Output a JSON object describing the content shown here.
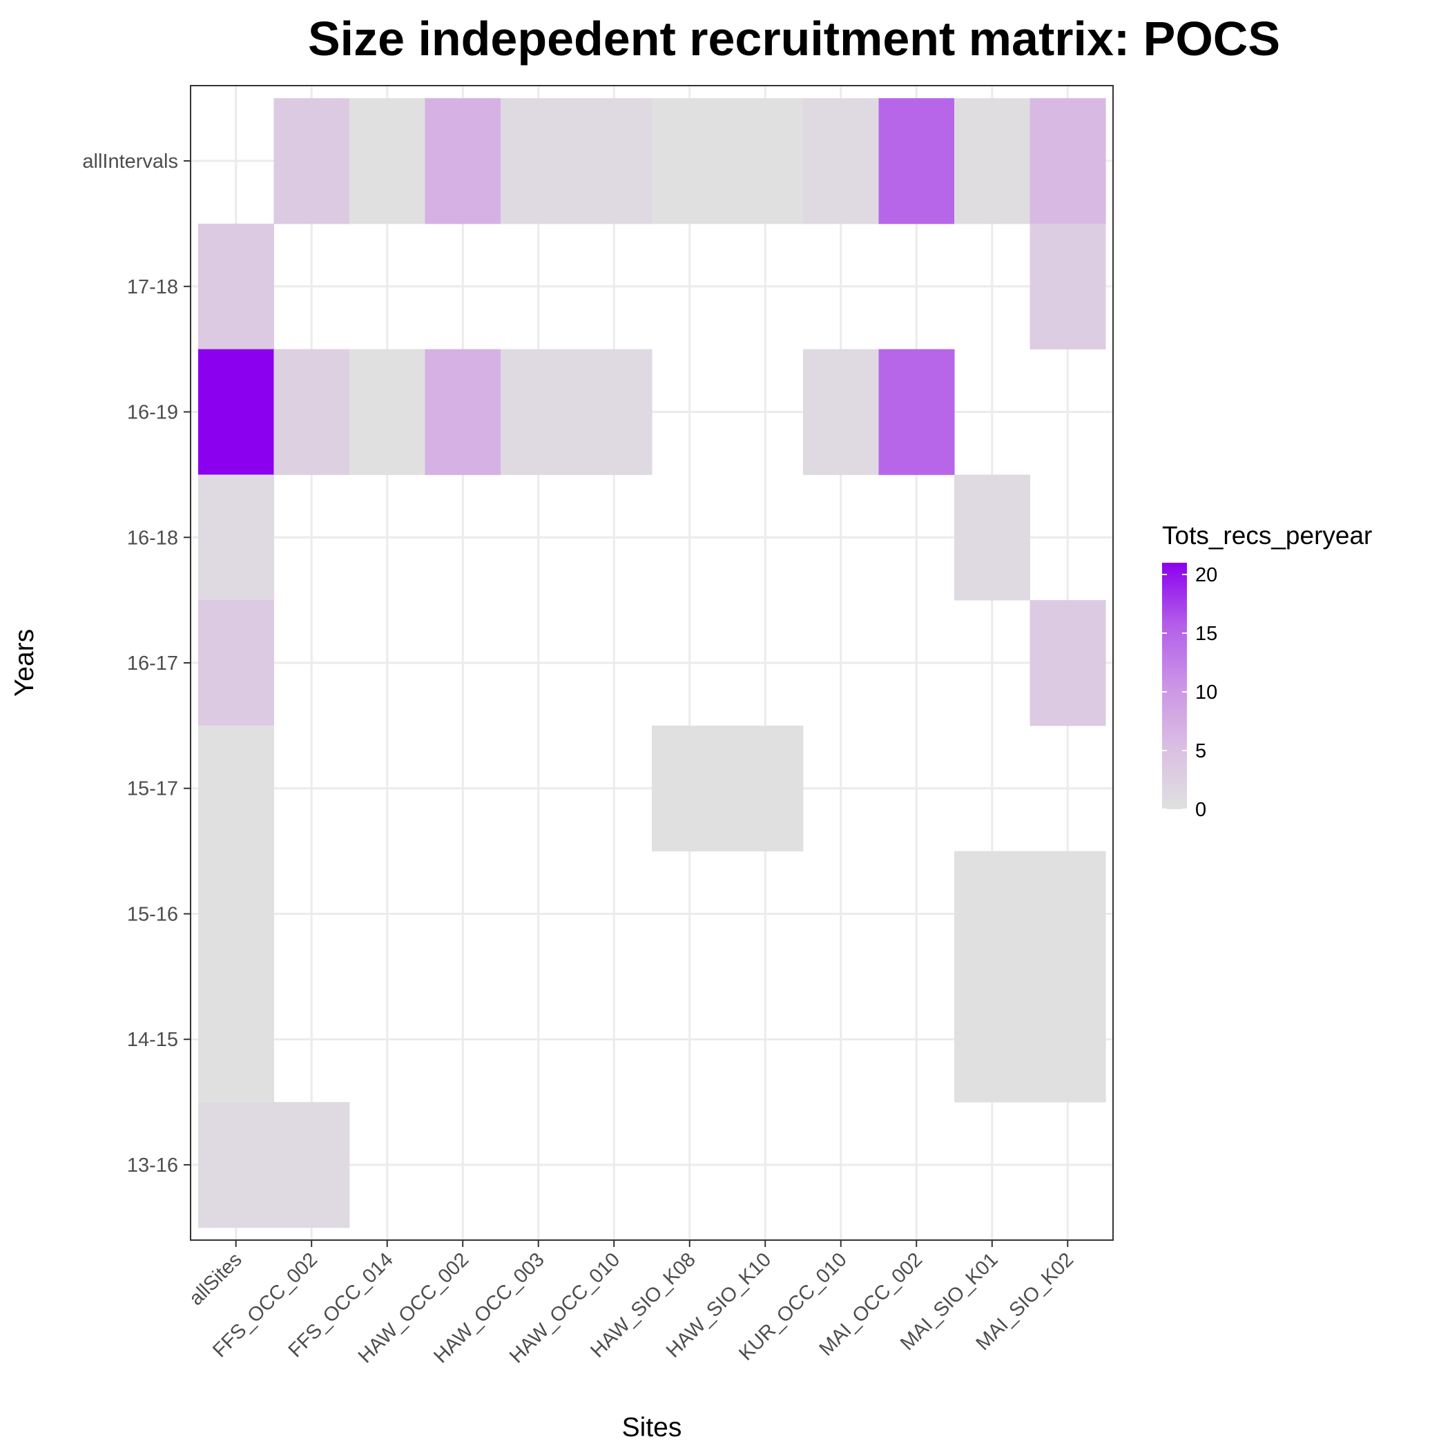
{
  "chart_data": {
    "type": "heatmap",
    "title": "Size indepedent recruitment matrix: POCS",
    "xlabel": "Sites",
    "ylabel": "Years",
    "x_categories": [
      "allSites",
      "FFS_OCC_002",
      "FFS_OCC_014",
      "HAW_OCC_002",
      "HAW_OCC_003",
      "HAW_OCC_010",
      "HAW_SIO_K08",
      "HAW_SIO_K10",
      "KUR_OCC_010",
      "MAI_OCC_002",
      "MAI_SIO_K01",
      "MAI_SIO_K02"
    ],
    "y_categories": [
      "allIntervals",
      "17-18",
      "16-19",
      "16-18",
      "16-17",
      "15-17",
      "15-16",
      "14-15",
      "13-16"
    ],
    "cells": [
      {
        "x": "FFS_OCC_002",
        "y": "allIntervals",
        "value": 3.5
      },
      {
        "x": "FFS_OCC_014",
        "y": "allIntervals",
        "value": 0
      },
      {
        "x": "HAW_OCC_002",
        "y": "allIntervals",
        "value": 7
      },
      {
        "x": "HAW_OCC_003",
        "y": "allIntervals",
        "value": 1
      },
      {
        "x": "HAW_OCC_010",
        "y": "allIntervals",
        "value": 1
      },
      {
        "x": "HAW_SIO_K08",
        "y": "allIntervals",
        "value": 0
      },
      {
        "x": "HAW_SIO_K10",
        "y": "allIntervals",
        "value": 0
      },
      {
        "x": "KUR_OCC_010",
        "y": "allIntervals",
        "value": 1
      },
      {
        "x": "MAI_OCC_002",
        "y": "allIntervals",
        "value": 15
      },
      {
        "x": "MAI_SIO_K01",
        "y": "allIntervals",
        "value": 0.5
      },
      {
        "x": "MAI_SIO_K02",
        "y": "allIntervals",
        "value": 6
      },
      {
        "x": "allSites",
        "y": "17-18",
        "value": 3.5
      },
      {
        "x": "MAI_SIO_K02",
        "y": "17-18",
        "value": 3
      },
      {
        "x": "allSites",
        "y": "16-19",
        "value": 21
      },
      {
        "x": "FFS_OCC_002",
        "y": "16-19",
        "value": 2.5
      },
      {
        "x": "FFS_OCC_014",
        "y": "16-19",
        "value": 0
      },
      {
        "x": "HAW_OCC_002",
        "y": "16-19",
        "value": 7
      },
      {
        "x": "HAW_OCC_003",
        "y": "16-19",
        "value": 1
      },
      {
        "x": "HAW_OCC_010",
        "y": "16-19",
        "value": 1
      },
      {
        "x": "KUR_OCC_010",
        "y": "16-19",
        "value": 1
      },
      {
        "x": "MAI_OCC_002",
        "y": "16-19",
        "value": 15
      },
      {
        "x": "allSites",
        "y": "16-18",
        "value": 1
      },
      {
        "x": "MAI_SIO_K01",
        "y": "16-18",
        "value": 1
      },
      {
        "x": "allSites",
        "y": "16-17",
        "value": 3.5
      },
      {
        "x": "MAI_SIO_K02",
        "y": "16-17",
        "value": 3.5
      },
      {
        "x": "allSites",
        "y": "15-17",
        "value": 0
      },
      {
        "x": "HAW_SIO_K08",
        "y": "15-17",
        "value": 0
      },
      {
        "x": "HAW_SIO_K10",
        "y": "15-17",
        "value": 0
      },
      {
        "x": "allSites",
        "y": "15-16",
        "value": 0
      },
      {
        "x": "MAI_SIO_K01",
        "y": "15-16",
        "value": 0
      },
      {
        "x": "MAI_SIO_K02",
        "y": "15-16",
        "value": 0
      },
      {
        "x": "allSites",
        "y": "14-15",
        "value": 0
      },
      {
        "x": "MAI_SIO_K01",
        "y": "14-15",
        "value": 0
      },
      {
        "x": "MAI_SIO_K02",
        "y": "14-15",
        "value": 0
      },
      {
        "x": "allSites",
        "y": "13-16",
        "value": 1
      },
      {
        "x": "FFS_OCC_002",
        "y": "13-16",
        "value": 1
      }
    ],
    "legend": {
      "title": "Tots_recs_peryear",
      "ticks": [
        0,
        5,
        10,
        15,
        20
      ],
      "range": [
        0,
        21
      ],
      "low_color": "#e0e0e0",
      "high_color": "#8b00ee",
      "placement": "right"
    },
    "grid": true
  }
}
